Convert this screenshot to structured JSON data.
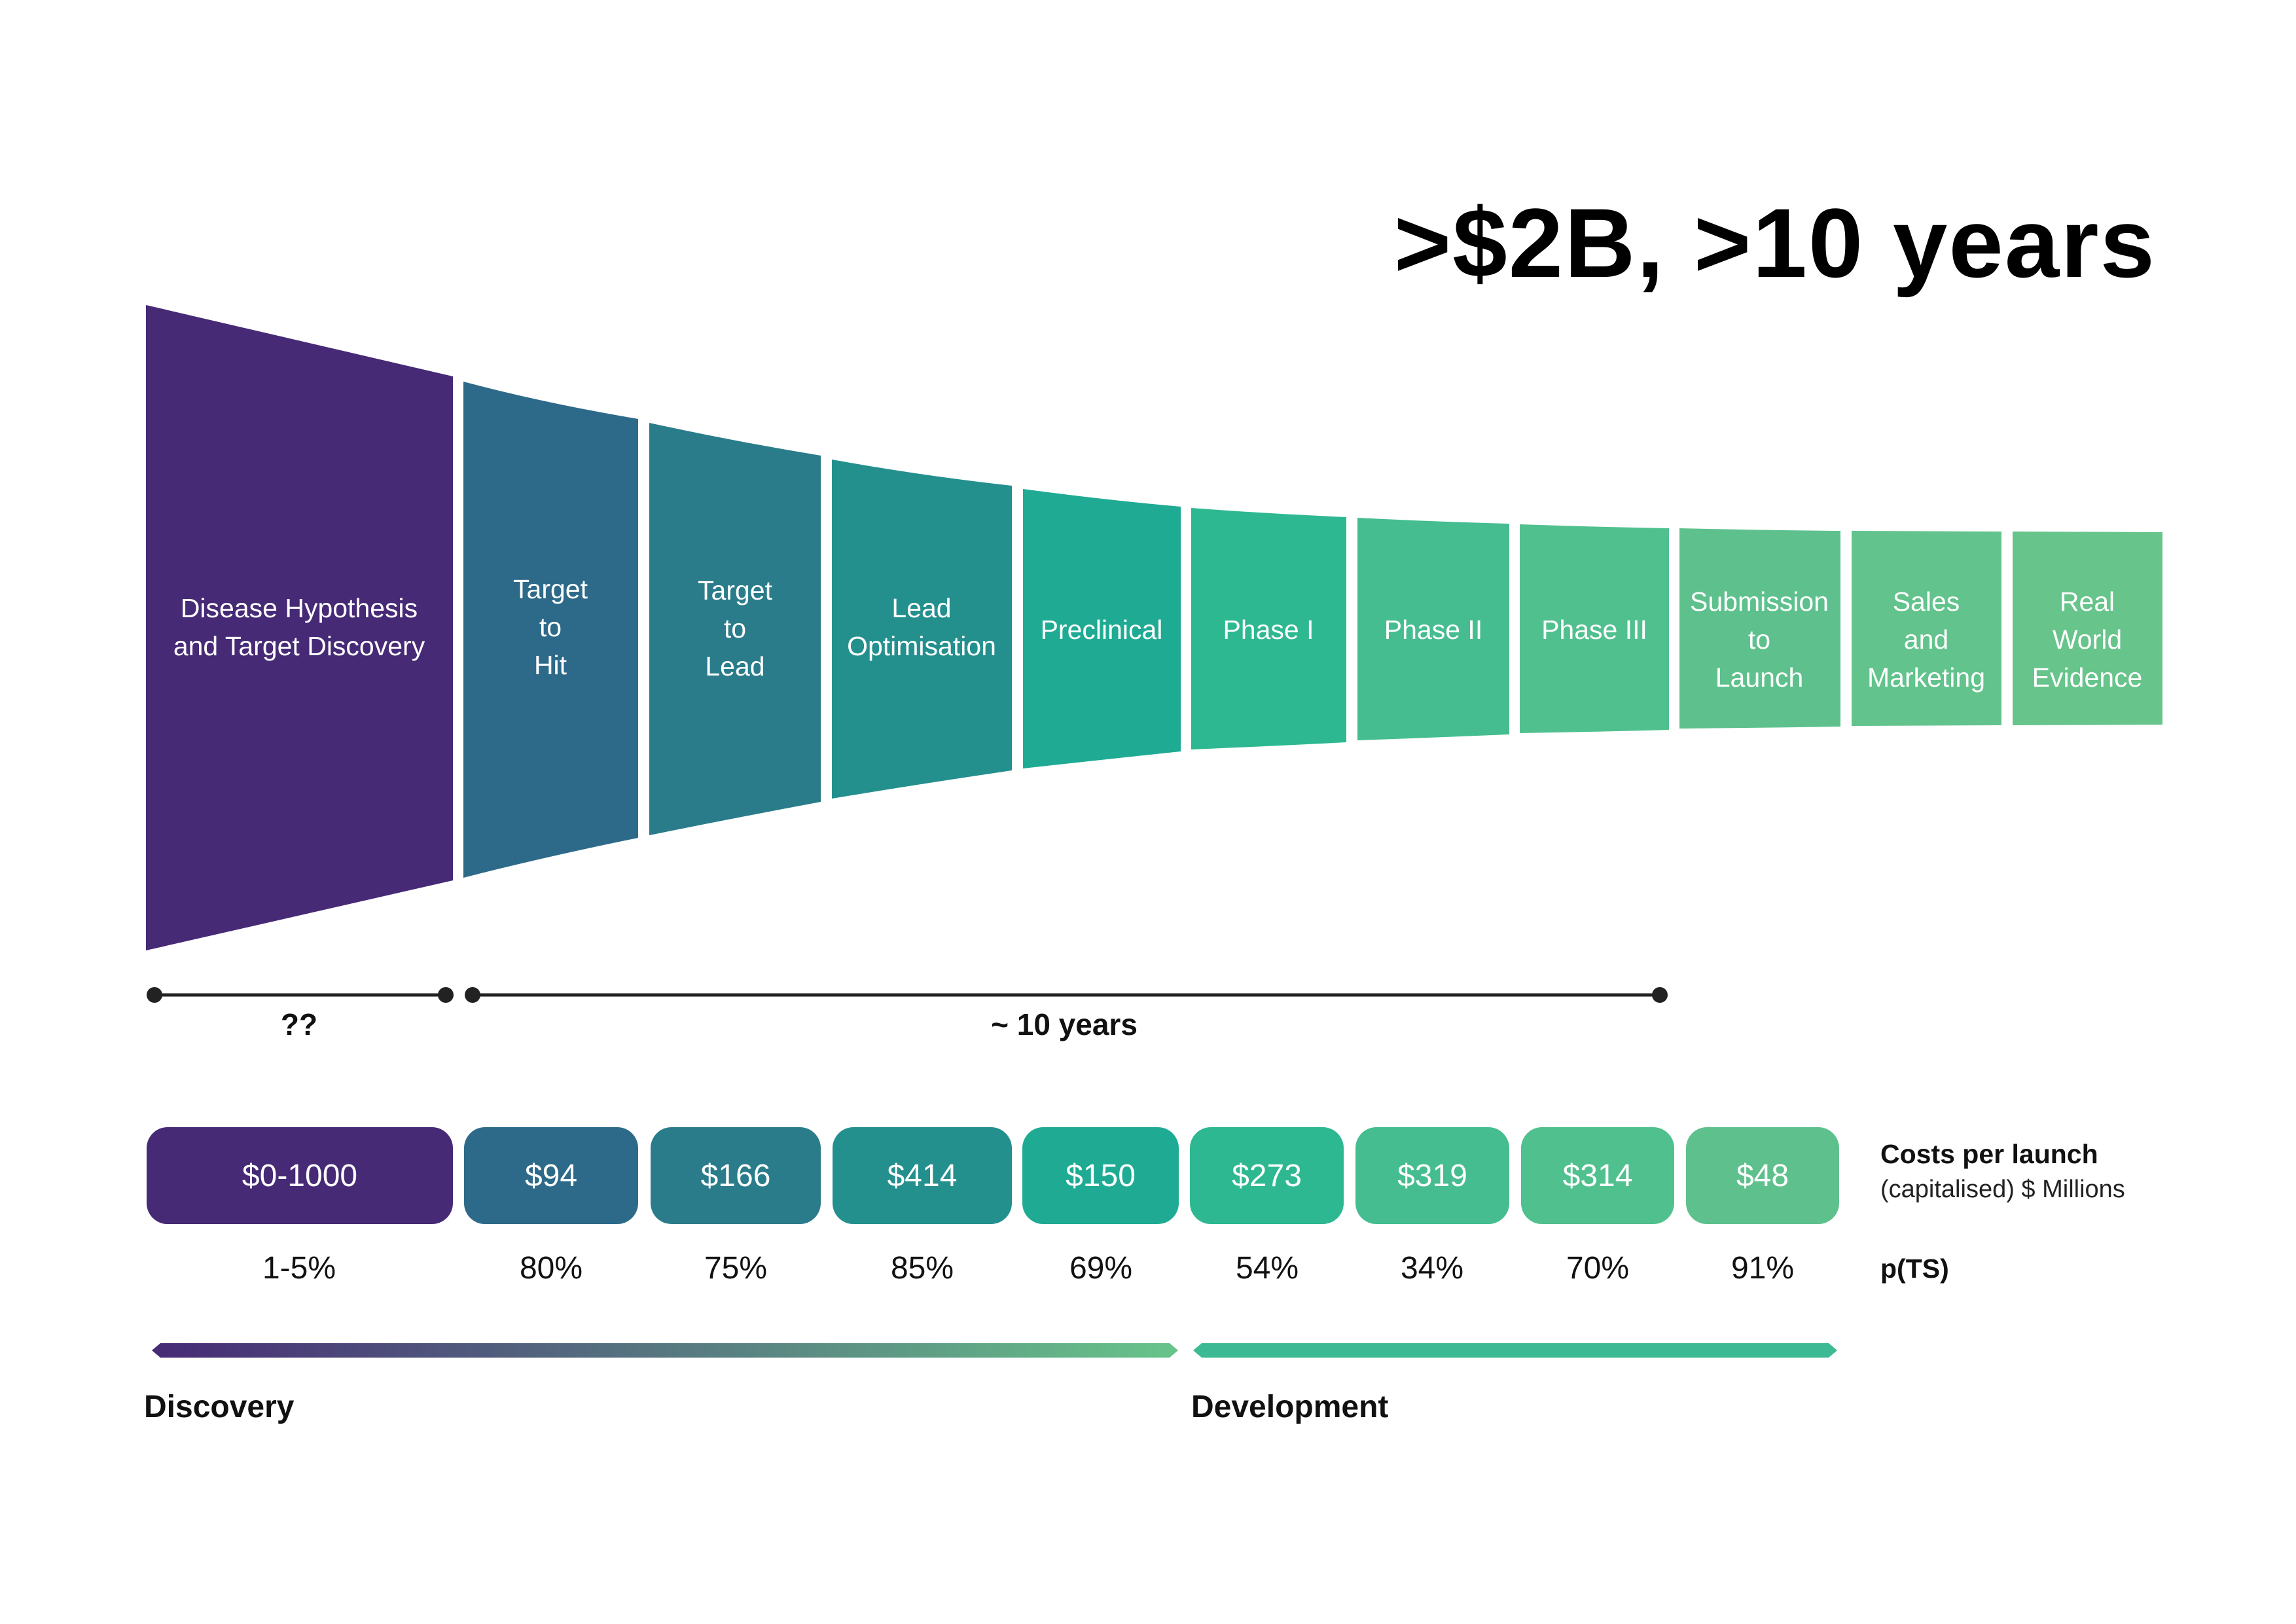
{
  "headline": ">$2B, >10 years",
  "stages": [
    {
      "id": "disease-hypothesis",
      "label": "Disease Hypothesis\nand Target Discovery",
      "color": "#462a76"
    },
    {
      "id": "target-to-hit",
      "label": "Target\nto\nHit",
      "color": "#2d6a89"
    },
    {
      "id": "target-to-lead",
      "label": "Target\nto\nLead",
      "color": "#2a7c8b"
    },
    {
      "id": "lead-optimisation",
      "label": "Lead\nOptimisation",
      "color": "#24908e"
    },
    {
      "id": "preclinical",
      "label": "Preclinical",
      "color": "#1fab93"
    },
    {
      "id": "phase-i",
      "label": "Phase I",
      "color": "#2db891"
    },
    {
      "id": "phase-ii",
      "label": "Phase II",
      "color": "#45bd90"
    },
    {
      "id": "phase-iii",
      "label": "Phase III",
      "color": "#51c08f"
    },
    {
      "id": "submission-to-launch",
      "label": "Submission\nto\nLaunch",
      "color": "#5ec18d"
    },
    {
      "id": "sales-and-marketing",
      "label": "Sales\nand\nMarketing",
      "color": "#62c38c"
    },
    {
      "id": "real-world-evidence",
      "label": "Real\nWorld\nEvidence",
      "color": "#67c48a"
    }
  ],
  "durations": [
    {
      "id": "discovery-duration",
      "label": "??"
    },
    {
      "id": "development-duration",
      "label": "~ 10 years"
    }
  ],
  "costs": {
    "title": "Costs per launch",
    "subtitle": "(capitalised) $ Millions",
    "values": [
      "$0-1000",
      "$94",
      "$166",
      "$414",
      "$150",
      "$273",
      "$319",
      "$314",
      "$48"
    ]
  },
  "probabilities": {
    "title": "p(TS)",
    "values": [
      "1-5%",
      "80%",
      "75%",
      "85%",
      "69%",
      "54%",
      "34%",
      "70%",
      "91%"
    ]
  },
  "phases": {
    "discovery": "Discovery",
    "development": "Development"
  },
  "colors": {
    "discovery_gradient_start": "#462a76",
    "discovery_gradient_end": "#67c48a",
    "development_bar": "#3dba93",
    "timeline": "#222222"
  }
}
